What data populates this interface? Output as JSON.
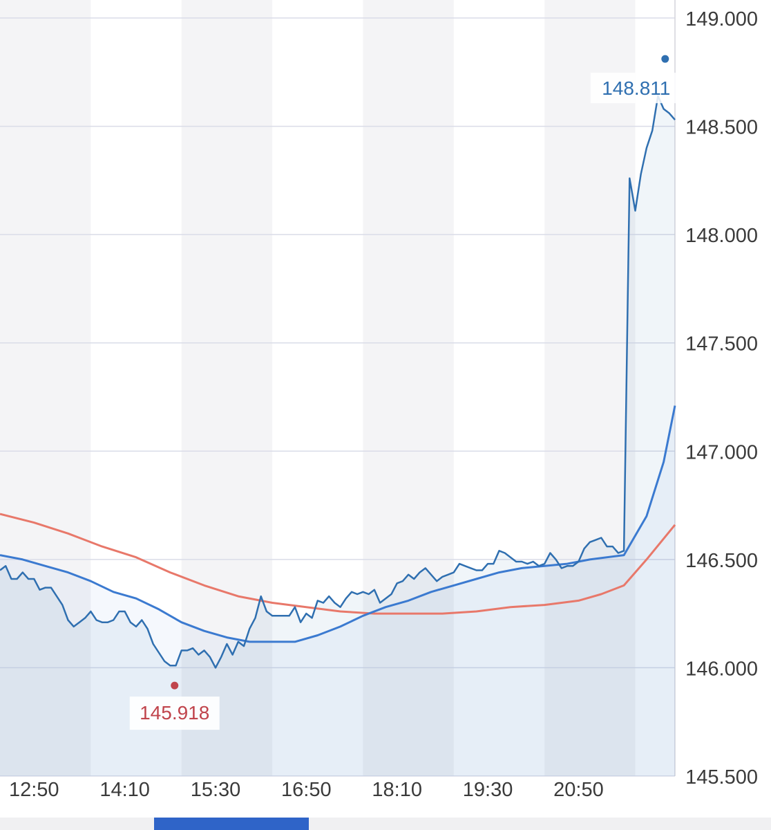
{
  "chart_data": {
    "type": "line",
    "x_ticks": [
      "12:50",
      "14:10",
      "15:30",
      "16:50",
      "18:10",
      "19:30",
      "20:50"
    ],
    "y_ticks": [
      "149.000",
      "148.500",
      "148.000",
      "147.500",
      "147.000",
      "146.500",
      "146.000",
      "145.500"
    ],
    "ylim": [
      145.5,
      149.0
    ],
    "grid": true,
    "series": [
      {
        "role": "price",
        "color": "#2f6fb0",
        "points": [
          [
            "12:20",
            146.45
          ],
          [
            "12:25",
            146.47
          ],
          [
            "12:30",
            146.41
          ],
          [
            "12:35",
            146.41
          ],
          [
            "12:40",
            146.44
          ],
          [
            "12:45",
            146.41
          ],
          [
            "12:50",
            146.41
          ],
          [
            "12:55",
            146.36
          ],
          [
            "13:00",
            146.37
          ],
          [
            "13:05",
            146.37
          ],
          [
            "13:10",
            146.33
          ],
          [
            "13:15",
            146.29
          ],
          [
            "13:20",
            146.22
          ],
          [
            "13:25",
            146.19
          ],
          [
            "13:30",
            146.21
          ],
          [
            "13:35",
            146.23
          ],
          [
            "13:40",
            146.26
          ],
          [
            "13:45",
            146.22
          ],
          [
            "13:50",
            146.21
          ],
          [
            "13:55",
            146.21
          ],
          [
            "14:00",
            146.22
          ],
          [
            "14:05",
            146.26
          ],
          [
            "14:10",
            146.26
          ],
          [
            "14:15",
            146.21
          ],
          [
            "14:20",
            146.19
          ],
          [
            "14:25",
            146.22
          ],
          [
            "14:30",
            146.18
          ],
          [
            "14:35",
            146.11
          ],
          [
            "14:40",
            146.07
          ],
          [
            "14:45",
            146.03
          ],
          [
            "14:50",
            146.01
          ],
          [
            "14:55",
            146.01
          ],
          [
            "15:00",
            146.08
          ],
          [
            "15:05",
            146.08
          ],
          [
            "15:10",
            146.09
          ],
          [
            "15:15",
            146.06
          ],
          [
            "15:20",
            146.08
          ],
          [
            "15:25",
            146.05
          ],
          [
            "15:30",
            146.0
          ],
          [
            "15:35",
            146.05
          ],
          [
            "15:40",
            146.11
          ],
          [
            "15:45",
            146.06
          ],
          [
            "15:50",
            146.12
          ],
          [
            "15:55",
            146.1
          ],
          [
            "16:00",
            146.18
          ],
          [
            "16:05",
            146.23
          ],
          [
            "16:10",
            146.33
          ],
          [
            "16:15",
            146.26
          ],
          [
            "16:20",
            146.24
          ],
          [
            "16:25",
            146.24
          ],
          [
            "16:30",
            146.24
          ],
          [
            "16:35",
            146.24
          ],
          [
            "16:40",
            146.28
          ],
          [
            "16:45",
            146.21
          ],
          [
            "16:50",
            146.25
          ],
          [
            "16:55",
            146.23
          ],
          [
            "17:00",
            146.31
          ],
          [
            "17:05",
            146.3
          ],
          [
            "17:10",
            146.33
          ],
          [
            "17:15",
            146.3
          ],
          [
            "17:20",
            146.28
          ],
          [
            "17:25",
            146.32
          ],
          [
            "17:30",
            146.35
          ],
          [
            "17:35",
            146.34
          ],
          [
            "17:40",
            146.35
          ],
          [
            "17:45",
            146.34
          ],
          [
            "17:50",
            146.36
          ],
          [
            "17:55",
            146.3
          ],
          [
            "18:00",
            146.32
          ],
          [
            "18:05",
            146.34
          ],
          [
            "18:10",
            146.39
          ],
          [
            "18:15",
            146.4
          ],
          [
            "18:20",
            146.43
          ],
          [
            "18:25",
            146.41
          ],
          [
            "18:30",
            146.44
          ],
          [
            "18:35",
            146.46
          ],
          [
            "18:40",
            146.43
          ],
          [
            "18:45",
            146.4
          ],
          [
            "18:50",
            146.42
          ],
          [
            "18:55",
            146.43
          ],
          [
            "19:00",
            146.44
          ],
          [
            "19:05",
            146.48
          ],
          [
            "19:10",
            146.47
          ],
          [
            "19:15",
            146.46
          ],
          [
            "19:20",
            146.45
          ],
          [
            "19:25",
            146.45
          ],
          [
            "19:30",
            146.48
          ],
          [
            "19:35",
            146.48
          ],
          [
            "19:40",
            146.54
          ],
          [
            "19:45",
            146.53
          ],
          [
            "19:50",
            146.51
          ],
          [
            "19:55",
            146.49
          ],
          [
            "20:00",
            146.49
          ],
          [
            "20:05",
            146.48
          ],
          [
            "20:10",
            146.49
          ],
          [
            "20:15",
            146.47
          ],
          [
            "20:20",
            146.48
          ],
          [
            "20:25",
            146.53
          ],
          [
            "20:30",
            146.5
          ],
          [
            "20:35",
            146.46
          ],
          [
            "20:40",
            146.47
          ],
          [
            "20:45",
            146.47
          ],
          [
            "20:50",
            146.49
          ],
          [
            "20:55",
            146.55
          ],
          [
            "21:00",
            146.58
          ],
          [
            "21:05",
            146.59
          ],
          [
            "21:10",
            146.6
          ],
          [
            "21:15",
            146.56
          ],
          [
            "21:20",
            146.56
          ],
          [
            "21:25",
            146.53
          ],
          [
            "21:30",
            146.54
          ],
          [
            "21:35",
            148.26
          ],
          [
            "21:40",
            148.11
          ],
          [
            "21:45",
            148.28
          ],
          [
            "21:50",
            148.4
          ],
          [
            "21:55",
            148.48
          ],
          [
            "22:00",
            148.64
          ],
          [
            "22:05",
            148.58
          ],
          [
            "22:10",
            148.56
          ],
          [
            "22:15",
            148.53
          ]
        ]
      },
      {
        "role": "moving-average-short",
        "color": "#3b7ad0",
        "points": [
          [
            "12:20",
            146.52
          ],
          [
            "12:40",
            146.5
          ],
          [
            "13:00",
            146.47
          ],
          [
            "13:20",
            146.44
          ],
          [
            "13:40",
            146.4
          ],
          [
            "14:00",
            146.35
          ],
          [
            "14:20",
            146.32
          ],
          [
            "14:40",
            146.27
          ],
          [
            "15:00",
            146.21
          ],
          [
            "15:20",
            146.17
          ],
          [
            "15:40",
            146.14
          ],
          [
            "16:00",
            146.12
          ],
          [
            "16:20",
            146.12
          ],
          [
            "16:40",
            146.12
          ],
          [
            "17:00",
            146.15
          ],
          [
            "17:20",
            146.19
          ],
          [
            "17:40",
            146.24
          ],
          [
            "18:00",
            146.28
          ],
          [
            "18:20",
            146.31
          ],
          [
            "18:40",
            146.35
          ],
          [
            "19:00",
            146.38
          ],
          [
            "19:20",
            146.41
          ],
          [
            "19:40",
            146.44
          ],
          [
            "20:00",
            146.46
          ],
          [
            "20:20",
            146.47
          ],
          [
            "20:40",
            146.48
          ],
          [
            "21:00",
            146.5
          ],
          [
            "21:30",
            146.52
          ],
          [
            "21:50",
            146.7
          ],
          [
            "22:05",
            146.95
          ],
          [
            "22:15",
            147.21
          ]
        ]
      },
      {
        "role": "moving-average-long",
        "color": "#e8786a",
        "points": [
          [
            "12:20",
            146.71
          ],
          [
            "12:50",
            146.67
          ],
          [
            "13:20",
            146.62
          ],
          [
            "13:50",
            146.56
          ],
          [
            "14:20",
            146.51
          ],
          [
            "14:50",
            146.44
          ],
          [
            "15:20",
            146.38
          ],
          [
            "15:50",
            146.33
          ],
          [
            "16:20",
            146.3
          ],
          [
            "16:50",
            146.28
          ],
          [
            "17:20",
            146.26
          ],
          [
            "17:50",
            146.25
          ],
          [
            "18:20",
            146.25
          ],
          [
            "18:50",
            146.25
          ],
          [
            "19:20",
            146.26
          ],
          [
            "19:50",
            146.28
          ],
          [
            "20:20",
            146.29
          ],
          [
            "20:50",
            146.31
          ],
          [
            "21:10",
            146.34
          ],
          [
            "21:30",
            146.38
          ],
          [
            "21:50",
            146.5
          ],
          [
            "22:15",
            146.66
          ]
        ]
      }
    ],
    "annotations": [
      {
        "label": "148.811",
        "x": "22:10",
        "y": 148.811,
        "color": "#2f6fb0"
      },
      {
        "label": "145.918",
        "x": "15:00",
        "y": 145.918,
        "color": "#c0444c"
      }
    ]
  }
}
